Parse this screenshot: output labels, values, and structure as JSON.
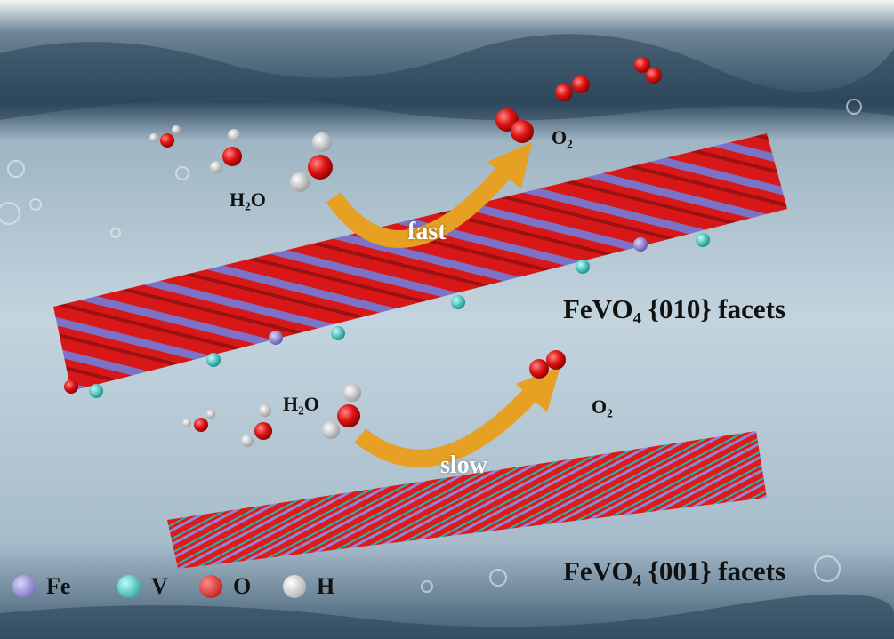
{
  "upper": {
    "water_label": "H₂O",
    "rate_label": "fast",
    "oxygen_label": "O₂",
    "facet_label": "FeVO₄ {010} facets"
  },
  "lower": {
    "water_label": "H₂O",
    "rate_label": "slow",
    "oxygen_label": "O₂",
    "facet_label": "FeVO₄ {001} facets"
  },
  "legend": [
    {
      "label": "Fe",
      "color": "#8f86d6"
    },
    {
      "label": "V",
      "color": "#1fc7c2"
    },
    {
      "label": "O",
      "color": "#e01515"
    },
    {
      "label": "H",
      "color": "#dcdcdc"
    }
  ],
  "colors": {
    "arrow": "#e6a124",
    "water_top": "#3e5a70",
    "water_mid": "#c2d3dd"
  }
}
